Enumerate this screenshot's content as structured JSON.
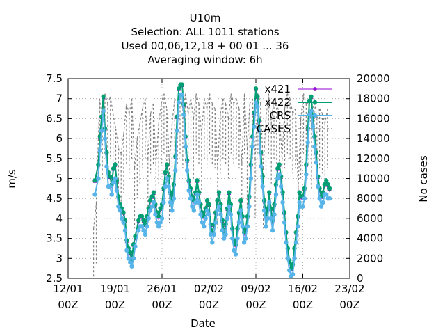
{
  "chart_data": {
    "type": "line",
    "title_lines": [
      "U10m",
      "Selection: ALL    1011 stations",
      "Used  00,06,12,18 + 00 01 ... 36",
      "Averaging window:  6h"
    ],
    "xlabel": "Date",
    "ylabel": "m/s",
    "y2label": "No cases",
    "x_ticks": [
      {
        "day": 12,
        "label1": "12/01",
        "label2": "00Z"
      },
      {
        "day": 19,
        "label1": "19/01",
        "label2": "00Z"
      },
      {
        "day": 26,
        "label1": "26/01",
        "label2": "00Z"
      },
      {
        "day": 33,
        "label1": "02/02",
        "label2": "00Z"
      },
      {
        "day": 40,
        "label1": "09/02",
        "label2": "00Z"
      },
      {
        "day": 47,
        "label1": "16/02",
        "label2": "00Z"
      },
      {
        "day": 54,
        "label1": "23/02",
        "label2": "00Z"
      }
    ],
    "xlim": [
      12,
      54
    ],
    "ylim": [
      2.5,
      7.5
    ],
    "y2lim": [
      0,
      20000
    ],
    "y_ticks": [
      "2.5",
      "3",
      "3.5",
      "4",
      "4.5",
      "5",
      "5.5",
      "6",
      "6.5",
      "7",
      "7.5"
    ],
    "y2_ticks": [
      "0",
      "2000",
      "4000",
      "6000",
      "8000",
      "10000",
      "12000",
      "14000",
      "16000",
      "18000",
      "20000"
    ],
    "grid": true,
    "legend_position": "top-right",
    "series": [
      {
        "name": "x421",
        "color": "#9400d3",
        "marker": "cross",
        "x": [
          16.0,
          16.5,
          16.75,
          17.0,
          17.25,
          17.5,
          17.75,
          18.0,
          18.25,
          18.5,
          18.75,
          19.0,
          19.25,
          19.5,
          19.75,
          20.0,
          20.25,
          20.5,
          20.75,
          21.0,
          21.25,
          21.5,
          21.75,
          22.0,
          22.5,
          22.75,
          23.0,
          23.25,
          23.5,
          23.75,
          24.0,
          24.25,
          24.5,
          24.75,
          25.0,
          25.25,
          25.5,
          25.75,
          26.0,
          26.25,
          26.5,
          26.75,
          27.0,
          27.25,
          27.5,
          27.75,
          28.0,
          28.25,
          28.5,
          28.75,
          29.0,
          29.25,
          29.5,
          29.75,
          30.0,
          30.25,
          30.5,
          30.75,
          31.0,
          31.25,
          31.5,
          31.75,
          32.0,
          32.25,
          32.5,
          32.75,
          33.0,
          33.25,
          33.5,
          33.75,
          34.0,
          34.25,
          34.5,
          34.75,
          35.0,
          35.25,
          35.5,
          35.75,
          36.0,
          36.25,
          36.5,
          36.75,
          37.0,
          37.25,
          37.5,
          37.75,
          38.0,
          38.25,
          38.5,
          38.75,
          39.0,
          39.25,
          39.5,
          39.75,
          40.0,
          40.25,
          40.5,
          40.75,
          41.0,
          41.25,
          41.5,
          41.75,
          42.0,
          42.25,
          42.5,
          42.75,
          43.0,
          43.25,
          43.5,
          43.75,
          44.0,
          44.25,
          44.5,
          44.75,
          45.0,
          45.25,
          45.5,
          45.75,
          46.0,
          46.25,
          46.5,
          46.75,
          47.0,
          47.25,
          47.5,
          47.75,
          48.0,
          48.25,
          48.5,
          48.75,
          49.0,
          49.25,
          49.5,
          49.75,
          50.0,
          50.25,
          50.5,
          50.75,
          51.0
        ],
        "y": [
          4.9,
          5.3,
          6.0,
          6.5,
          7.0,
          6.2,
          5.6,
          5.1,
          5.0,
          4.8,
          5.2,
          5.3,
          4.9,
          4.5,
          4.3,
          4.2,
          4.1,
          3.9,
          3.4,
          3.2,
          3.1,
          2.9,
          3.3,
          3.5,
          3.9,
          4.0,
          4.0,
          3.9,
          3.8,
          4.0,
          4.2,
          4.4,
          4.5,
          4.6,
          4.3,
          4.1,
          4.0,
          4.2,
          4.3,
          4.7,
          5.1,
          5.3,
          5.0,
          4.6,
          4.4,
          4.8,
          5.5,
          6.5,
          7.2,
          7.3,
          7.3,
          6.8,
          6.0,
          5.4,
          4.9,
          4.7,
          4.5,
          4.4,
          4.6,
          4.9,
          4.6,
          4.3,
          4.1,
          4.0,
          4.2,
          4.4,
          4.3,
          3.8,
          3.6,
          3.8,
          4.1,
          4.4,
          4.6,
          4.3,
          3.9,
          3.6,
          3.8,
          4.2,
          4.6,
          4.3,
          3.7,
          3.4,
          3.3,
          3.7,
          4.1,
          4.4,
          4.0,
          3.6,
          3.7,
          4.0,
          4.5,
          5.3,
          6.0,
          6.6,
          7.2,
          7.0,
          6.4,
          5.6,
          5.0,
          4.4,
          4.0,
          4.2,
          4.6,
          4.2,
          3.9,
          4.3,
          4.8,
          5.2,
          5.3,
          5.0,
          4.6,
          4.1,
          3.6,
          3.2,
          2.9,
          2.7,
          2.8,
          3.2,
          3.6,
          4.0,
          4.6,
          4.5,
          4.5,
          4.7,
          5.3,
          6.2,
          6.9,
          7.0,
          6.5,
          6.0,
          5.6,
          5.0,
          4.7,
          4.5,
          4.6,
          4.8,
          4.9,
          4.8,
          4.7
        ],
        "line_width": 1
      },
      {
        "name": "x422",
        "color": "#009e73",
        "marker": "circle",
        "x": [
          16.0,
          16.5,
          16.75,
          17.0,
          17.25,
          17.5,
          17.75,
          18.0,
          18.25,
          18.5,
          18.75,
          19.0,
          19.25,
          19.5,
          19.75,
          20.0,
          20.25,
          20.5,
          20.75,
          21.0,
          21.25,
          21.5,
          21.75,
          22.0,
          22.5,
          22.75,
          23.0,
          23.25,
          23.5,
          23.75,
          24.0,
          24.25,
          24.5,
          24.75,
          25.0,
          25.25,
          25.5,
          25.75,
          26.0,
          26.25,
          26.5,
          26.75,
          27.0,
          27.25,
          27.5,
          27.75,
          28.0,
          28.25,
          28.5,
          28.75,
          29.0,
          29.25,
          29.5,
          29.75,
          30.0,
          30.25,
          30.5,
          30.75,
          31.0,
          31.25,
          31.5,
          31.75,
          32.0,
          32.25,
          32.5,
          32.75,
          33.0,
          33.25,
          33.5,
          33.75,
          34.0,
          34.25,
          34.5,
          34.75,
          35.0,
          35.25,
          35.5,
          35.75,
          36.0,
          36.25,
          36.5,
          36.75,
          37.0,
          37.25,
          37.5,
          37.75,
          38.0,
          38.25,
          38.5,
          38.75,
          39.0,
          39.25,
          39.5,
          39.75,
          40.0,
          40.25,
          40.5,
          40.75,
          41.0,
          41.25,
          41.5,
          41.75,
          42.0,
          42.25,
          42.5,
          42.75,
          43.0,
          43.25,
          43.5,
          43.75,
          44.0,
          44.25,
          44.5,
          44.75,
          45.0,
          45.25,
          45.5,
          45.75,
          46.0,
          46.25,
          46.5,
          46.75,
          47.0,
          47.25,
          47.5,
          47.75,
          48.0,
          48.25,
          48.5,
          48.75,
          49.0,
          49.25,
          49.5,
          49.75,
          50.0,
          50.25,
          50.5,
          50.75,
          51.0
        ],
        "y": [
          4.95,
          5.35,
          6.05,
          6.55,
          7.05,
          6.25,
          5.65,
          5.15,
          5.05,
          4.85,
          5.25,
          5.35,
          4.95,
          4.55,
          4.35,
          4.25,
          4.15,
          3.95,
          3.45,
          3.25,
          3.15,
          2.95,
          3.35,
          3.55,
          3.95,
          4.05,
          4.05,
          3.95,
          3.85,
          4.05,
          4.25,
          4.45,
          4.55,
          4.65,
          4.35,
          4.15,
          4.05,
          4.25,
          4.35,
          4.75,
          5.15,
          5.35,
          5.05,
          4.65,
          4.45,
          4.85,
          5.55,
          6.55,
          7.25,
          7.35,
          7.35,
          6.85,
          6.05,
          5.45,
          4.95,
          4.75,
          4.55,
          4.45,
          4.65,
          4.95,
          4.65,
          4.35,
          4.15,
          4.05,
          4.25,
          4.45,
          4.35,
          3.85,
          3.65,
          3.85,
          4.15,
          4.45,
          4.65,
          4.35,
          3.95,
          3.65,
          3.85,
          4.25,
          4.65,
          4.35,
          3.75,
          3.45,
          3.35,
          3.75,
          4.15,
          4.45,
          4.05,
          3.65,
          3.75,
          4.05,
          4.55,
          5.35,
          6.05,
          6.65,
          7.25,
          7.05,
          6.45,
          5.65,
          5.05,
          4.45,
          4.05,
          4.25,
          4.65,
          4.25,
          3.95,
          4.35,
          4.85,
          5.25,
          5.35,
          5.05,
          4.65,
          4.15,
          3.65,
          3.25,
          2.95,
          2.75,
          2.85,
          3.25,
          3.65,
          4.05,
          4.65,
          4.55,
          4.55,
          4.75,
          5.35,
          6.25,
          6.95,
          7.05,
          6.55,
          6.05,
          5.65,
          5.05,
          4.75,
          4.55,
          4.65,
          4.85,
          4.95,
          4.85,
          4.75
        ],
        "line_width": 2
      },
      {
        "name": "CRS",
        "color": "#56b4e9",
        "marker": "circle",
        "x": [
          16.0,
          16.5,
          16.75,
          17.0,
          17.25,
          17.5,
          17.75,
          18.0,
          18.25,
          18.5,
          18.75,
          19.0,
          19.25,
          19.5,
          19.75,
          20.0,
          20.25,
          20.5,
          20.75,
          21.0,
          21.25,
          21.5,
          21.75,
          22.0,
          22.5,
          22.75,
          23.0,
          23.25,
          23.5,
          23.75,
          24.0,
          24.25,
          24.5,
          24.75,
          25.0,
          25.25,
          25.5,
          25.75,
          26.0,
          26.25,
          26.5,
          26.75,
          27.0,
          27.25,
          27.5,
          27.75,
          28.0,
          28.25,
          28.5,
          28.75,
          29.0,
          29.25,
          29.5,
          29.75,
          30.0,
          30.25,
          30.5,
          30.75,
          31.0,
          31.25,
          31.5,
          31.75,
          32.0,
          32.25,
          32.5,
          32.75,
          33.0,
          33.25,
          33.5,
          33.75,
          34.0,
          34.25,
          34.5,
          34.75,
          35.0,
          35.25,
          35.5,
          35.75,
          36.0,
          36.25,
          36.5,
          36.75,
          37.0,
          37.25,
          37.5,
          37.75,
          38.0,
          38.25,
          38.5,
          38.75,
          39.0,
          39.25,
          39.5,
          39.75,
          40.0,
          40.25,
          40.5,
          40.75,
          41.0,
          41.25,
          41.5,
          41.75,
          42.0,
          42.25,
          42.5,
          42.75,
          43.0,
          43.25,
          43.5,
          43.75,
          44.0,
          44.25,
          44.5,
          44.75,
          45.0,
          45.25,
          45.5,
          45.75,
          46.0,
          46.25,
          46.5,
          46.75,
          47.0,
          47.25,
          47.5,
          47.75,
          48.0,
          48.25,
          48.5,
          48.75,
          49.0,
          49.25,
          49.5,
          49.75,
          50.0,
          50.25,
          50.5,
          50.75,
          51.0
        ],
        "y": [
          4.6,
          5.0,
          5.7,
          6.2,
          6.7,
          6.0,
          5.3,
          4.8,
          4.8,
          4.6,
          4.9,
          5.0,
          4.7,
          4.3,
          4.2,
          4.0,
          3.9,
          3.7,
          3.2,
          3.0,
          2.9,
          2.8,
          3.0,
          3.3,
          3.7,
          3.8,
          3.8,
          3.7,
          3.6,
          3.8,
          4.0,
          4.2,
          4.3,
          4.4,
          4.1,
          3.9,
          3.8,
          3.9,
          4.0,
          4.4,
          4.8,
          5.0,
          4.8,
          4.4,
          4.2,
          4.5,
          5.2,
          6.2,
          6.9,
          7.1,
          7.1,
          6.6,
          5.8,
          5.2,
          4.7,
          4.5,
          4.3,
          4.2,
          4.4,
          4.6,
          4.4,
          4.1,
          3.9,
          3.8,
          4.0,
          4.2,
          4.1,
          3.6,
          3.4,
          3.6,
          3.9,
          4.2,
          4.3,
          4.1,
          3.7,
          3.5,
          3.6,
          4.0,
          4.3,
          4.1,
          3.5,
          3.2,
          3.1,
          3.5,
          3.9,
          4.2,
          3.8,
          3.4,
          3.5,
          3.8,
          4.3,
          5.0,
          5.8,
          6.3,
          6.9,
          6.8,
          6.2,
          5.3,
          4.8,
          4.2,
          3.8,
          4.0,
          4.4,
          4.0,
          3.7,
          4.1,
          4.6,
          5.0,
          5.1,
          4.8,
          4.4,
          3.9,
          3.4,
          3.0,
          2.7,
          2.55,
          2.6,
          3.0,
          3.4,
          3.8,
          4.4,
          4.3,
          4.3,
          4.5,
          5.1,
          5.9,
          6.6,
          6.7,
          6.3,
          5.8,
          5.4,
          4.8,
          4.5,
          4.3,
          4.4,
          4.6,
          4.6,
          4.5,
          4.5
        ],
        "line_width": 2
      },
      {
        "name": "CASES",
        "color": "#808080",
        "axis": "right",
        "style": "dashed-impulse",
        "x": [
          15.8,
          16.2,
          16.7,
          17.1,
          17.5,
          17.9,
          18.3,
          18.7,
          19.1,
          19.5,
          19.9,
          20.3,
          20.7,
          21.1,
          21.5,
          21.9,
          22.3,
          22.7,
          23.1,
          23.5,
          23.9,
          24.3,
          24.7,
          25.1,
          25.5,
          25.9,
          26.3,
          26.7,
          27.1,
          27.5,
          27.9,
          28.3,
          28.7,
          29.1,
          29.5,
          29.9,
          30.3,
          30.7,
          31.1,
          31.5,
          31.9,
          32.3,
          32.7,
          33.1,
          33.5,
          33.9,
          34.3,
          34.7,
          35.1,
          35.5,
          35.9,
          36.3,
          36.7,
          37.1,
          37.5,
          37.9,
          38.3,
          38.7,
          39.1,
          39.5,
          39.9,
          40.3,
          40.7,
          41.1,
          41.5,
          41.9,
          42.3,
          42.7,
          43.1,
          43.5,
          43.9,
          44.3,
          44.7,
          45.1,
          45.5,
          45.9,
          46.3,
          46.7,
          47.1,
          47.5,
          47.9,
          48.3,
          48.7,
          49.1,
          49.5,
          49.9,
          50.3,
          50.7
        ],
        "y": [
          5000,
          7500,
          18000,
          16000,
          18500,
          17500,
          18200,
          16500,
          15000,
          13000,
          12500,
          14500,
          17500,
          16500,
          18000,
          11000,
          14000,
          15500,
          17000,
          18000,
          12000,
          16500,
          17500,
          11500,
          15500,
          17500,
          18500,
          17000,
          11500,
          15500,
          18000,
          17500,
          18500,
          17000,
          18500,
          16500,
          18000,
          16000,
          18500,
          17500,
          14500,
          18000,
          17000,
          18500,
          17500,
          17000,
          11000,
          16500,
          18000,
          17500,
          16000,
          18500,
          17500,
          18000,
          17000,
          11500,
          18500,
          13000,
          17500,
          18000,
          12000,
          18500,
          17500,
          11000,
          16000,
          18500,
          15500,
          18000,
          17500,
          16500,
          12000,
          17000,
          18500,
          18000,
          16500,
          17000,
          9000,
          16000,
          18500,
          17500,
          17500,
          15000,
          18000,
          16000,
          17000,
          16500,
          15500,
          17000
        ]
      }
    ]
  }
}
